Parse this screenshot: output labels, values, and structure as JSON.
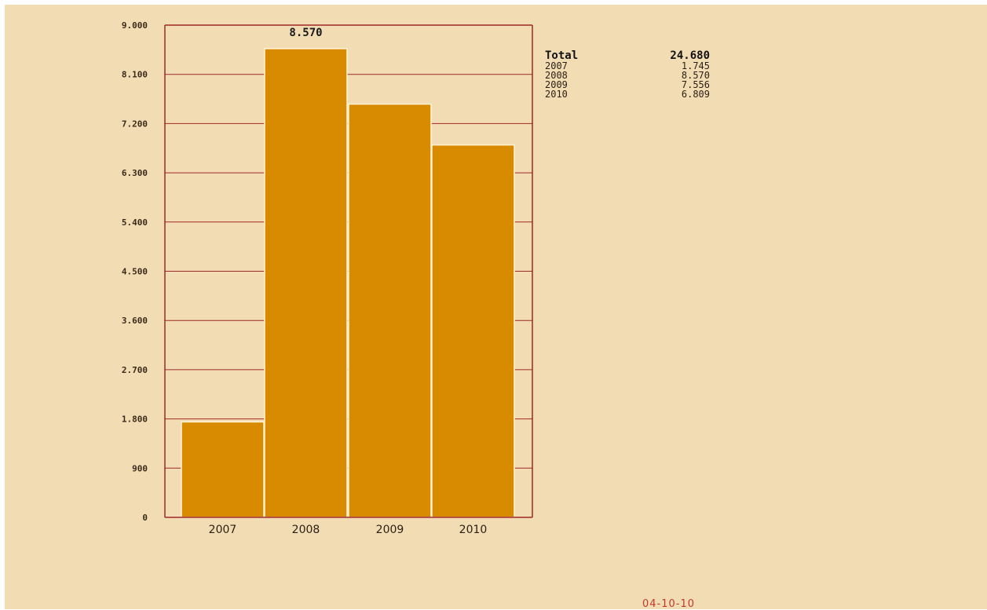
{
  "colors": {
    "background": "#f2dcb4",
    "bar": "#d98b00",
    "bar_border": "#fff3d6",
    "grid": "#a0282a",
    "frame": "#a0282a",
    "date": "#c0392b"
  },
  "chart_data": {
    "type": "bar",
    "categories": [
      "2007",
      "2008",
      "2009",
      "2010"
    ],
    "values": [
      1745,
      8570,
      7556,
      6809
    ],
    "ylim": [
      0,
      9000
    ],
    "yticks": [
      0,
      900,
      1800,
      2700,
      3600,
      4500,
      5400,
      6300,
      7200,
      8100,
      9000
    ],
    "ytick_labels": [
      "0",
      "900",
      "1.800",
      "2.700",
      "3.600",
      "4.500",
      "5.400",
      "6.300",
      "7.200",
      "8.100",
      "9.000"
    ],
    "peak_label": "8.570",
    "grid": true,
    "legend": {
      "position": "right",
      "total_label": "Total",
      "total_value": "24.680",
      "entries": [
        {
          "label": "2007",
          "value": "1.745"
        },
        {
          "label": "2008",
          "value": "8.570"
        },
        {
          "label": "2009",
          "value": "7.556"
        },
        {
          "label": "2010",
          "value": "6.809"
        }
      ]
    }
  },
  "footer": {
    "date": "04-10-10"
  }
}
